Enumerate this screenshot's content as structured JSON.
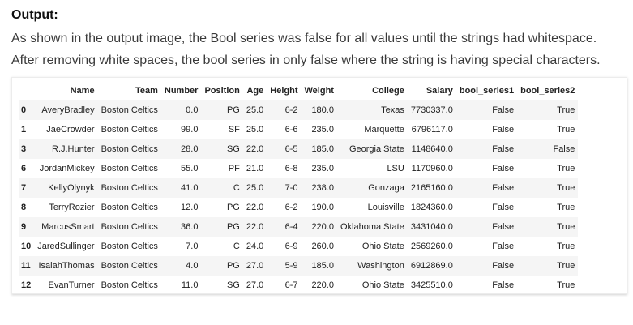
{
  "heading": "Output:",
  "paragraph1": "As shown in the output image, the Bool series was false for all values until the strings had whitespace.",
  "paragraph2": "After removing white spaces, the bool series in only false where the string is having special characters.",
  "table": {
    "columns": [
      "Name",
      "Team",
      "Number",
      "Position",
      "Age",
      "Height",
      "Weight",
      "College",
      "Salary",
      "bool_series1",
      "bool_series2"
    ],
    "rows": [
      {
        "index": "0",
        "cells": [
          "AveryBradley",
          "Boston Celtics",
          "0.0",
          "PG",
          "25.0",
          "6-2",
          "180.0",
          "Texas",
          "7730337.0",
          "False",
          "True"
        ]
      },
      {
        "index": "1",
        "cells": [
          "JaeCrowder",
          "Boston Celtics",
          "99.0",
          "SF",
          "25.0",
          "6-6",
          "235.0",
          "Marquette",
          "6796117.0",
          "False",
          "True"
        ]
      },
      {
        "index": "3",
        "cells": [
          "R.J.Hunter",
          "Boston Celtics",
          "28.0",
          "SG",
          "22.0",
          "6-5",
          "185.0",
          "Georgia State",
          "1148640.0",
          "False",
          "False"
        ]
      },
      {
        "index": "6",
        "cells": [
          "JordanMickey",
          "Boston Celtics",
          "55.0",
          "PF",
          "21.0",
          "6-8",
          "235.0",
          "LSU",
          "1170960.0",
          "False",
          "True"
        ]
      },
      {
        "index": "7",
        "cells": [
          "KellyOlynyk",
          "Boston Celtics",
          "41.0",
          "C",
          "25.0",
          "7-0",
          "238.0",
          "Gonzaga",
          "2165160.0",
          "False",
          "True"
        ]
      },
      {
        "index": "8",
        "cells": [
          "TerryRozier",
          "Boston Celtics",
          "12.0",
          "PG",
          "22.0",
          "6-2",
          "190.0",
          "Louisville",
          "1824360.0",
          "False",
          "True"
        ]
      },
      {
        "index": "9",
        "cells": [
          "MarcusSmart",
          "Boston Celtics",
          "36.0",
          "PG",
          "22.0",
          "6-4",
          "220.0",
          "Oklahoma State",
          "3431040.0",
          "False",
          "True"
        ]
      },
      {
        "index": "10",
        "cells": [
          "JaredSullinger",
          "Boston Celtics",
          "7.0",
          "C",
          "24.0",
          "6-9",
          "260.0",
          "Ohio State",
          "2569260.0",
          "False",
          "True"
        ]
      },
      {
        "index": "11",
        "cells": [
          "IsaiahThomas",
          "Boston Celtics",
          "4.0",
          "PG",
          "27.0",
          "5-9",
          "185.0",
          "Washington",
          "6912869.0",
          "False",
          "True"
        ]
      },
      {
        "index": "12",
        "cells": [
          "EvanTurner",
          "Boston Celtics",
          "11.0",
          "SG",
          "27.0",
          "6-7",
          "220.0",
          "Ohio State",
          "3425510.0",
          "False",
          "True"
        ]
      }
    ]
  }
}
